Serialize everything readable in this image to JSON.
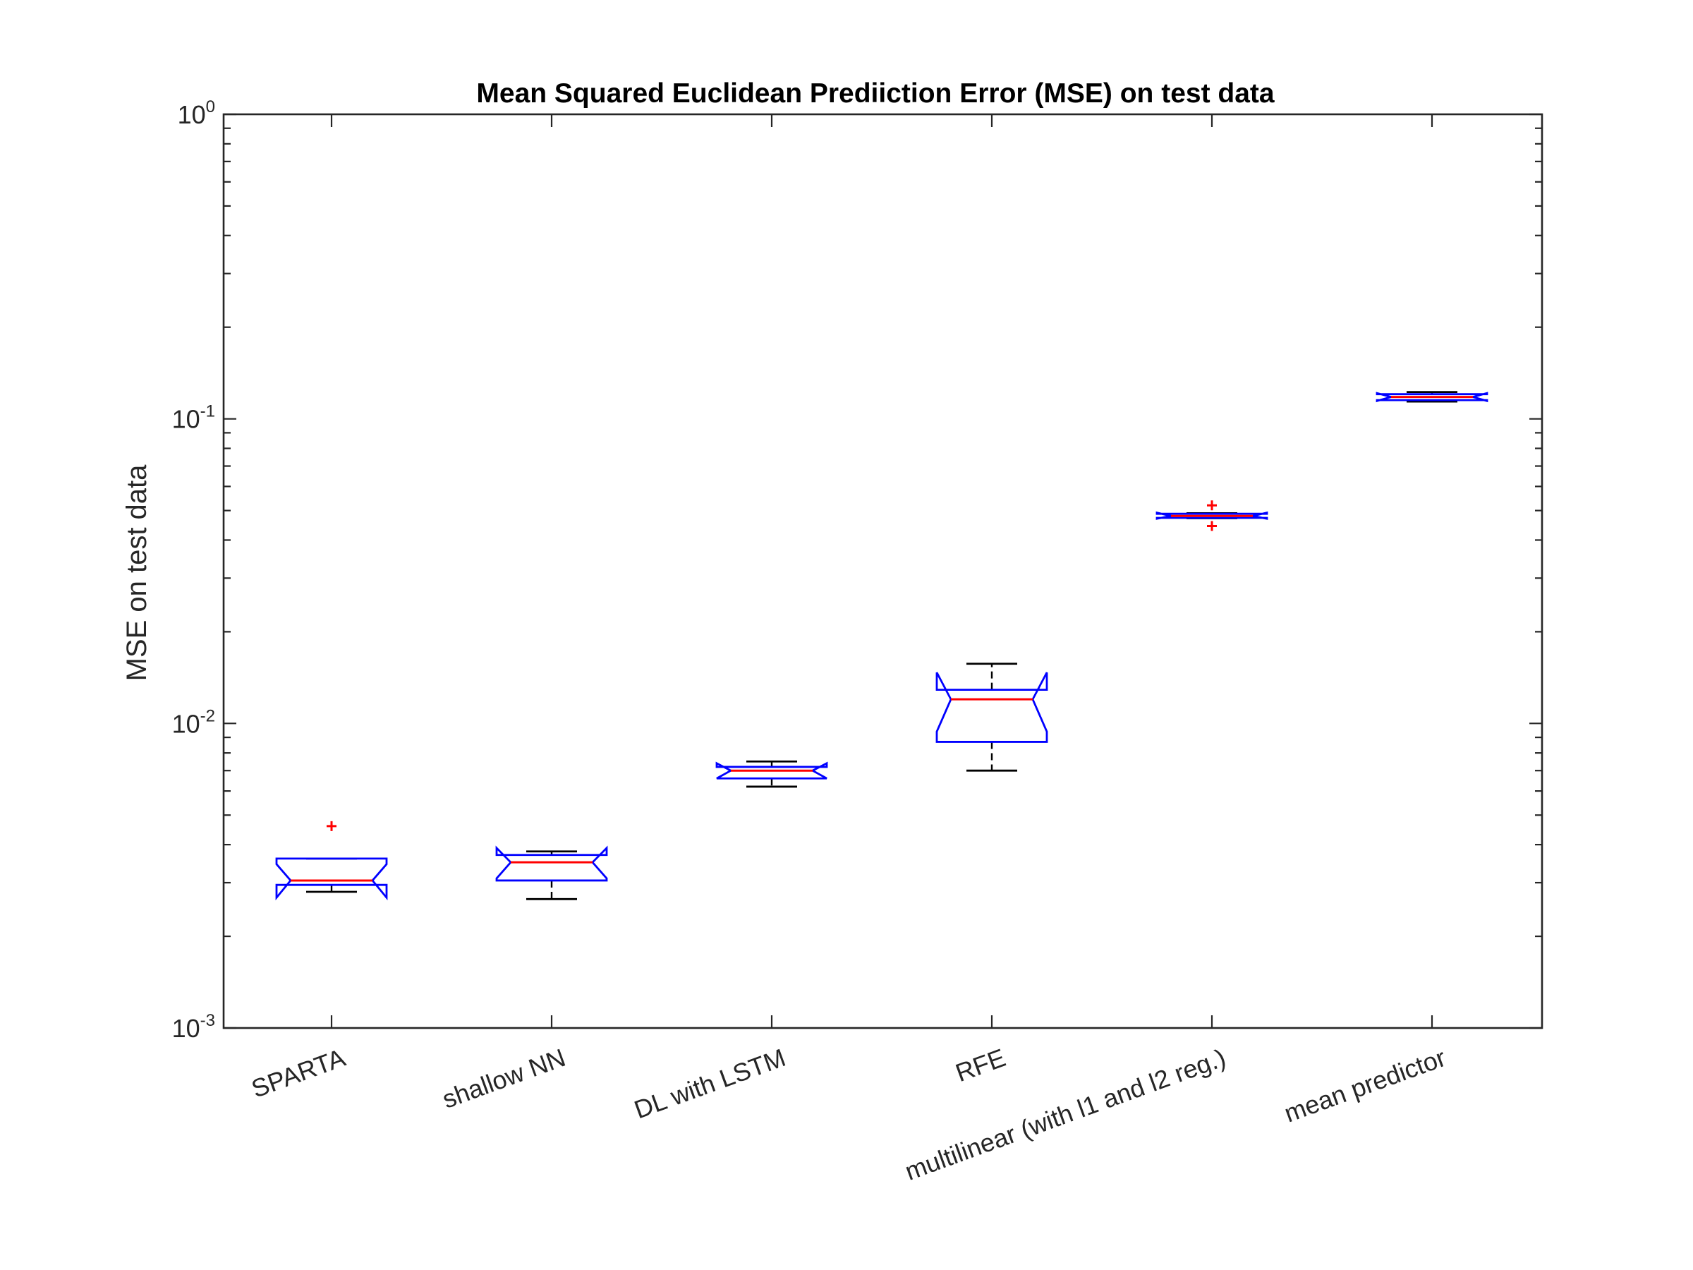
{
  "chart_data": {
    "type": "boxplot",
    "title": "Mean Squared Euclidean Prediiction Error (MSE) on test data",
    "xlabel": "",
    "ylabel": "MSE on test data",
    "yscale": "log",
    "ylim": [
      0.001,
      1
    ],
    "yticks": [
      {
        "value": 0.001,
        "base": "10",
        "exp": "-3"
      },
      {
        "value": 0.01,
        "base": "10",
        "exp": "-2"
      },
      {
        "value": 0.1,
        "base": "10",
        "exp": "-1"
      },
      {
        "value": 1,
        "base": "10",
        "exp": "0"
      }
    ],
    "grid": false,
    "notched": true,
    "colors": {
      "box": "#0000ff",
      "median": "#ff0000",
      "whisker": "#000000",
      "outlier": "#ff0000",
      "axis": "#262626"
    },
    "categories": [
      "SPARTA",
      "shallow NN",
      "DL with LSTM",
      "RFE",
      "multilinear (with l1 and l2 reg.)",
      "mean predictor"
    ],
    "boxes": [
      {
        "name": "SPARTA",
        "whisker_low": 0.0028,
        "q1": 0.00295,
        "median": 0.00305,
        "q3": 0.0036,
        "whisker_high": 0.0036,
        "notch_low": 0.00268,
        "notch_high": 0.00345,
        "outliers": [
          0.0046
        ]
      },
      {
        "name": "shallow NN",
        "whisker_low": 0.00265,
        "q1": 0.00305,
        "median": 0.0035,
        "q3": 0.0037,
        "whisker_high": 0.0038,
        "notch_low": 0.0031,
        "notch_high": 0.0039,
        "outliers": []
      },
      {
        "name": "DL with LSTM",
        "whisker_low": 0.0062,
        "q1": 0.0066,
        "median": 0.007,
        "q3": 0.0072,
        "whisker_high": 0.0075,
        "notch_low": 0.0066,
        "notch_high": 0.0074,
        "outliers": []
      },
      {
        "name": "RFE",
        "whisker_low": 0.007,
        "q1": 0.0087,
        "median": 0.012,
        "q3": 0.0129,
        "whisker_high": 0.0157,
        "notch_low": 0.0094,
        "notch_high": 0.0147,
        "outliers": []
      },
      {
        "name": "multilinear (with l1 and l2 reg.)",
        "whisker_low": 0.0472,
        "q1": 0.0473,
        "median": 0.048,
        "q3": 0.0488,
        "whisker_high": 0.049,
        "notch_low": 0.047,
        "notch_high": 0.0492,
        "outliers": [
          0.052,
          0.0445
        ]
      },
      {
        "name": "mean predictor",
        "whisker_low": 0.114,
        "q1": 0.1152,
        "median": 0.118,
        "q3": 0.1205,
        "whisker_high": 0.1225,
        "notch_low": 0.1145,
        "notch_high": 0.1215,
        "outliers": []
      }
    ]
  }
}
